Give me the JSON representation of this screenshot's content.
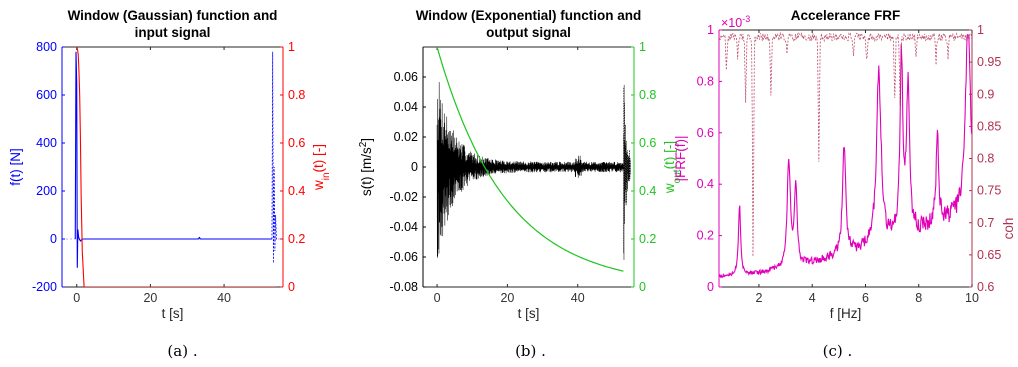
{
  "colors": {
    "blue": "#0000ff",
    "red": "#ff0000",
    "black": "#000000",
    "green": "#1fc41f",
    "magenta": "#e000b8",
    "darkred": "#b03050",
    "axis": "#262626"
  },
  "captions": [
    "(a) .",
    "(b) .",
    "(c) ."
  ],
  "chart_data": [
    {
      "type": "line",
      "title": [
        "Window (Gaussian) function and",
        "input signal"
      ],
      "xlabel": "t [s]",
      "ylabel": "f(t) [N]",
      "y2label": {
        "main": "w",
        "sub": "in",
        "rest": "(t) [-]"
      },
      "xlim": [
        -4,
        56
      ],
      "ylim": [
        -200,
        800
      ],
      "y2lim": [
        0,
        1
      ],
      "xticks": [
        "0",
        "20",
        "40"
      ],
      "xtick_values": [
        0,
        20,
        40
      ],
      "yticks": [
        "-200",
        "0",
        "200",
        "400",
        "600",
        "800"
      ],
      "ytick_values": [
        -200,
        0,
        200,
        400,
        600,
        800
      ],
      "y2ticks": [
        "0",
        "0.2",
        "0.4",
        "0.6",
        "0.8",
        "1"
      ],
      "y2tick_values": [
        0,
        0.2,
        0.4,
        0.6,
        0.8,
        1
      ],
      "series": [
        {
          "name": "f(t)",
          "axis": "left",
          "color": "blue",
          "x": [
            -0.4,
            -0.2,
            0,
            0.15,
            0.3,
            0.5,
            0.7,
            1,
            1.5,
            2,
            10,
            20,
            33,
            33.3,
            33.6,
            40,
            53
          ],
          "y": [
            0,
            780,
            650,
            -120,
            40,
            10,
            0,
            -8,
            0,
            0,
            0,
            0,
            0,
            6,
            0,
            0,
            0
          ]
        },
        {
          "name": "input signal",
          "axis": "left",
          "color": "blue",
          "dashed": true,
          "x": [
            53,
            53.2,
            53.4,
            53.6,
            53.8,
            54,
            54.2,
            54.4
          ],
          "y": [
            0,
            780,
            -100,
            300,
            -50,
            100,
            0,
            0
          ]
        },
        {
          "name": "w_in(t)",
          "axis": "right",
          "color": "red",
          "x": [
            0,
            0.2,
            0.4,
            0.6,
            0.8,
            1.0,
            1.2,
            1.5,
            2,
            10,
            30,
            54
          ],
          "y": [
            1,
            0.99,
            0.97,
            0.9,
            0.8,
            0.62,
            0.38,
            0.15,
            0,
            0,
            0,
            0
          ]
        }
      ]
    },
    {
      "type": "line",
      "title": [
        "Window (Exponential) function and",
        "output signal"
      ],
      "xlabel": "t [s]",
      "ylabel": {
        "main": "s(t) [m/s",
        "sup": "2",
        "rest": "]"
      },
      "y2label": {
        "main": "w",
        "sub": "out",
        "rest": "(t) [-]"
      },
      "xlim": [
        -4,
        56
      ],
      "ylim": [
        -0.08,
        0.08
      ],
      "y2lim": [
        0,
        1
      ],
      "xticks": [
        "0",
        "20",
        "40"
      ],
      "xtick_values": [
        0,
        20,
        40
      ],
      "yticks": [
        "-0.08",
        "-0.06",
        "-0.04",
        "-0.02",
        "0",
        "0.02",
        "0.04",
        "0.06"
      ],
      "ytick_values": [
        -0.08,
        -0.06,
        -0.04,
        -0.02,
        0,
        0.02,
        0.04,
        0.06
      ],
      "y2ticks": [
        "0",
        "0.2",
        "0.4",
        "0.6",
        "0.8",
        "1"
      ],
      "y2tick_values": [
        0,
        0.2,
        0.4,
        0.6,
        0.8,
        1
      ],
      "series": [
        {
          "name": "s(t)",
          "axis": "left",
          "color": "black",
          "envelope": {
            "amp": 0.062,
            "decay": 4.5,
            "floor": 0.0035,
            "t0": 0,
            "t1": 53
          }
        },
        {
          "name": "output signal",
          "axis": "left",
          "color": "black",
          "dashed": true,
          "envelope": {
            "amp": 0.07,
            "decay": 0.6,
            "floor": 0.01,
            "t0": 53,
            "t1": 55
          }
        },
        {
          "name": "w_out(t)",
          "axis": "right",
          "color": "green",
          "exp": {
            "start": 1.0,
            "tau": 19.5,
            "t0": 0,
            "t1": 53
          }
        }
      ]
    },
    {
      "type": "line",
      "title": "Accelerance FRF",
      "xlabel": "f [Hz]",
      "ylabel": "|FRF(f)|",
      "y2label": "coh",
      "exponent": {
        "base": "×10",
        "power": "-3"
      },
      "xlim": [
        0.5,
        10
      ],
      "ylim": [
        0,
        1
      ],
      "y2lim": [
        0.6,
        1
      ],
      "xticks": [
        "2",
        "4",
        "6",
        "8",
        "10"
      ],
      "xtick_values": [
        2,
        4,
        6,
        8,
        10
      ],
      "yticks": [
        "0",
        "0.2",
        "0.4",
        "0.6",
        "0.8",
        "1"
      ],
      "ytick_values": [
        0,
        0.2,
        0.4,
        0.6,
        0.8,
        1
      ],
      "y2ticks": [
        "0.6",
        "0.65",
        "0.7",
        "0.75",
        "0.8",
        "0.85",
        "0.9",
        "0.95",
        "1"
      ],
      "y2tick_values": [
        0.6,
        0.65,
        0.7,
        0.75,
        0.8,
        0.85,
        0.9,
        0.95,
        1
      ],
      "series": [
        {
          "name": "|FRF(f)|",
          "axis": "left",
          "color": "magenta",
          "peaks": [
            {
              "f": 1.27,
              "a": 0.28,
              "w": 0.05
            },
            {
              "f": 3.12,
              "a": 0.44,
              "w": 0.07
            },
            {
              "f": 3.38,
              "a": 0.33,
              "w": 0.06
            },
            {
              "f": 5.2,
              "a": 0.47,
              "w": 0.07
            },
            {
              "f": 6.5,
              "a": 0.72,
              "w": 0.1
            },
            {
              "f": 7.35,
              "a": 0.75,
              "w": 0.06
            },
            {
              "f": 7.6,
              "a": 0.58,
              "w": 0.07
            },
            {
              "f": 8.7,
              "a": 0.35,
              "w": 0.06
            },
            {
              "f": 9.85,
              "a": 0.88,
              "w": 0.1
            }
          ],
          "baseline": {
            "start": 0.04,
            "end": 0.3
          }
        },
        {
          "name": "coh",
          "axis": "right",
          "color": "darkred",
          "dashed": true,
          "dips": [
            {
              "f": 0.78,
              "v": 0.95
            },
            {
              "f": 1.2,
              "v": 0.97
            },
            {
              "f": 1.5,
              "v": 0.9
            },
            {
              "f": 1.78,
              "v": 0.645
            },
            {
              "f": 2.45,
              "v": 0.91
            },
            {
              "f": 3.05,
              "v": 0.97
            },
            {
              "f": 4.25,
              "v": 0.8
            },
            {
              "f": 5.55,
              "v": 0.97
            },
            {
              "f": 6.05,
              "v": 0.96
            },
            {
              "f": 7.1,
              "v": 0.9
            },
            {
              "f": 7.3,
              "v": 0.895
            },
            {
              "f": 7.9,
              "v": 0.97
            },
            {
              "f": 8.65,
              "v": 0.96
            },
            {
              "f": 9.1,
              "v": 0.965
            }
          ]
        }
      ]
    }
  ]
}
